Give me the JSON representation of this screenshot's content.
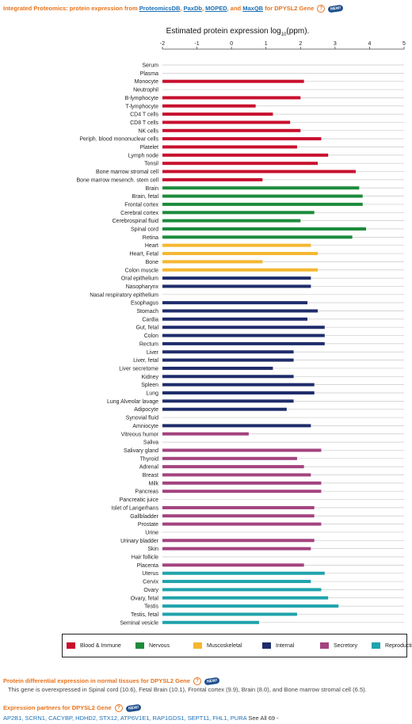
{
  "header": {
    "title_prefix": "Integrated Proteomics: protein expression from",
    "sources": [
      "ProteomicsDB",
      "PaxDb",
      "MOPED",
      "MaxQB"
    ],
    "sep1": ",",
    "sep2": ",",
    "sep3": ", and",
    "title_suffix": "for DPYSL2 Gene",
    "new_badge": "NEW!"
  },
  "chart_data": {
    "type": "bar",
    "orientation": "horizontal",
    "title": "Estimated protein expression log",
    "title_sub": "10",
    "title_unit": "(ppm).",
    "xlim": [
      -2,
      5
    ],
    "xticks": [
      "-2",
      "-1",
      "0",
      "1",
      "2",
      "3",
      "4",
      "5"
    ],
    "grid": true,
    "categories": [
      "Serum",
      "Plasma",
      "Monocyte",
      "Neutrophil",
      "B-lymphocyte",
      "T-lymphocyte",
      "CD4 T cells",
      "CD8 T cells",
      "NK cells",
      "Periph. blood mononuclear cells",
      "Platelet",
      "Lymph node",
      "Tonsil",
      "Bone marrow stromal cell",
      "Bone marrow mesench. stem cell",
      "Brain",
      "Brain, fetal",
      "Frontal cortex",
      "Cerebral cortex",
      "Cerebrospinal fluid",
      "Spinal cord",
      "Retina",
      "Heart",
      "Heart, Fetal",
      "Bone",
      "Colon muscle",
      "Oral epithelium",
      "Nasopharynx",
      "Nasal respiratory epithelium",
      "Esophagus",
      "Stomach",
      "Cardia",
      "Gut, fetal",
      "Colon",
      "Rectum",
      "Liver",
      "Liver, fetal",
      "Liver secretome",
      "Kidney",
      "Spleen",
      "Lung",
      "Lung Alveolar lavage",
      "Adipocyte",
      "Synovial fluid",
      "Amniocyte",
      "Vitreous humor",
      "Saliva",
      "Salivary gland",
      "Thyroid",
      "Adrenal",
      "Breast",
      "Milk",
      "Pancreas",
      "Pancreatic juice",
      "Islet of Langerhans",
      "Gallbladder",
      "Prostate",
      "Urine",
      "Urinary bladder",
      "Skin",
      "Hair follicle",
      "Placenta",
      "Uterus",
      "Cervix",
      "Ovary",
      "Ovary, fetal",
      "Testis",
      "Testis, fetal",
      "Seminal vesicle"
    ],
    "values": [
      null,
      null,
      2.1,
      null,
      2.0,
      0.7,
      1.2,
      1.7,
      2.0,
      2.6,
      1.9,
      2.8,
      2.5,
      3.6,
      0.9,
      3.7,
      3.8,
      3.8,
      2.4,
      2.0,
      3.9,
      3.5,
      2.3,
      2.5,
      0.9,
      2.5,
      2.3,
      2.3,
      null,
      2.2,
      2.5,
      2.2,
      2.7,
      2.7,
      2.7,
      1.8,
      1.8,
      1.2,
      1.8,
      2.4,
      2.4,
      1.8,
      1.6,
      null,
      2.3,
      0.5,
      null,
      2.6,
      1.9,
      2.1,
      2.3,
      2.6,
      2.6,
      null,
      2.4,
      2.4,
      2.6,
      null,
      2.4,
      2.3,
      null,
      2.1,
      2.7,
      2.3,
      2.6,
      2.8,
      3.1,
      1.9,
      0.8
    ],
    "groups": [
      "immune",
      "immune",
      "immune",
      "immune",
      "immune",
      "immune",
      "immune",
      "immune",
      "immune",
      "immune",
      "immune",
      "immune",
      "immune",
      "immune",
      "immune",
      "nervous",
      "nervous",
      "nervous",
      "nervous",
      "nervous",
      "nervous",
      "nervous",
      "musculo",
      "musculo",
      "musculo",
      "musculo",
      "internal",
      "internal",
      "internal",
      "internal",
      "internal",
      "internal",
      "internal",
      "internal",
      "internal",
      "internal",
      "internal",
      "internal",
      "internal",
      "internal",
      "internal",
      "internal",
      "internal",
      "internal",
      "internal",
      "secretory",
      "secretory",
      "secretory",
      "secretory",
      "secretory",
      "secretory",
      "secretory",
      "secretory",
      "secretory",
      "secretory",
      "secretory",
      "secretory",
      "secretory",
      "secretory",
      "secretory",
      "secretory",
      "secretory",
      "repro",
      "repro",
      "repro",
      "repro",
      "repro",
      "repro",
      "repro"
    ],
    "colors": {
      "immune": "#c8102e",
      "nervous": "#1c8c3c",
      "musculo": "#f5b731",
      "internal": "#1f2d6b",
      "secretory": "#a3437f",
      "repro": "#1fa3ac"
    },
    "legend": [
      {
        "label": "Blood & Immune",
        "color": "#c8102e"
      },
      {
        "label": "Nervous",
        "color": "#1c8c3c"
      },
      {
        "label": "Muscoskeletal",
        "color": "#f5b731"
      },
      {
        "label": "Internal",
        "color": "#1f2d6b"
      },
      {
        "label": "Secretory",
        "color": "#a3437f"
      },
      {
        "label": "Reproductive",
        "color": "#1fa3ac"
      }
    ]
  },
  "differential": {
    "title": "Protein differential expression in normal tissues for DPYSL2 Gene",
    "new_badge": "NEW!",
    "text": "This gene is overexpressed in Spinal cord (10.6), Fetal Brain (10.1), Frontal cortex (9.9), Brain (8.0), and Bone marrow stromal cell (6.5)."
  },
  "partners": {
    "title": "Expression partners for DPYSL2 Gene",
    "new_badge": "NEW!",
    "list": "AP2B1, SCRN1, CACYBP, HDHD2, STX12, ATP6V1E1, RAP1GDS1, SEPT11, FHL1, PURA",
    "see_all": "See All 69 -"
  }
}
